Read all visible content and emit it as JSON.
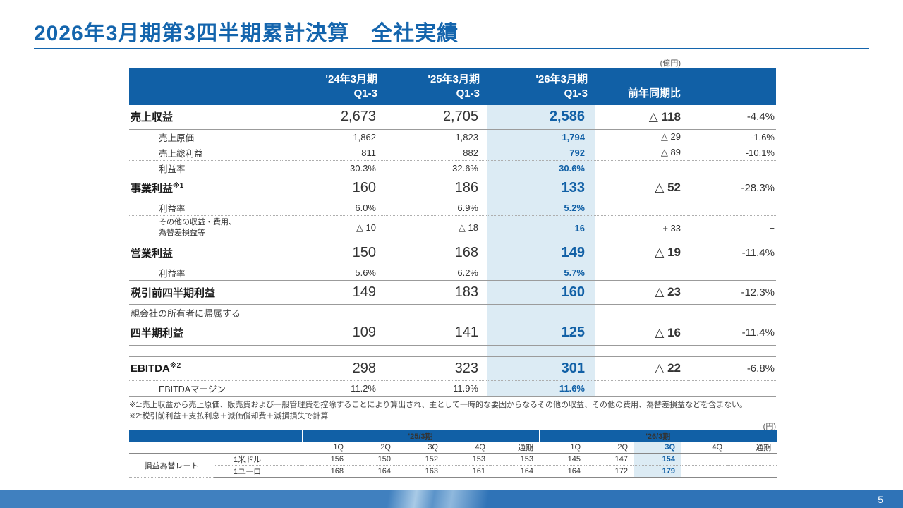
{
  "page": {
    "title": "2026年3月期第3四半期累計決算　全社実績",
    "unit_main": "(億円)",
    "unit_fx": "(円)",
    "page_number": "5"
  },
  "colors": {
    "accent_blue": "#1160a6",
    "title_blue": "#1465ad",
    "highlight_bg": "#dcebf4"
  },
  "footnotes": {
    "note1": "※1:売上収益から売上原価、販売費および一般管理費を控除することにより算出され、主として一時的な要因からなるその他の収益、その他の費用、為替差損益などを含まない。",
    "note2": "※2:税引前利益＋支払利息＋減価償却費＋減損損失で計算"
  },
  "main_table": {
    "col_headers": [
      {
        "line1": "'24年3月期",
        "line2": "Q1-3"
      },
      {
        "line1": "'25年3月期",
        "line2": "Q1-3"
      },
      {
        "line1": "'26年3月期",
        "line2": "Q1-3"
      },
      {
        "line1": "前年同期比",
        "line2": ""
      },
      {
        "line1": "",
        "line2": ""
      }
    ],
    "rows": [
      {
        "style": "major",
        "border": "solid",
        "label": "売上収益",
        "sup": "",
        "v1": "2,673",
        "v2": "2,705",
        "v3": "2,586",
        "yoy": "△ 118",
        "pct": "-4.4%"
      },
      {
        "style": "sub",
        "border": "dotted",
        "label": "売上原価",
        "sup": "",
        "v1": "1,862",
        "v2": "1,823",
        "v3": "1,794",
        "yoy": "△ 29",
        "pct": "-1.6%"
      },
      {
        "style": "sub",
        "border": "dotted",
        "label": "売上総利益",
        "sup": "",
        "v1": "811",
        "v2": "882",
        "v3": "792",
        "yoy": "△ 89",
        "pct": "-10.1%"
      },
      {
        "style": "sub",
        "border": "solid",
        "label": "利益率",
        "sup": "",
        "v1": "30.3%",
        "v2": "32.6%",
        "v3": "30.6%",
        "yoy": "",
        "pct": ""
      },
      {
        "style": "major",
        "border": "dotted",
        "label": "事業利益",
        "sup": "※1",
        "v1": "160",
        "v2": "186",
        "v3": "133",
        "yoy": "△ 52",
        "pct": "-28.3%"
      },
      {
        "style": "sub",
        "border": "dotted",
        "label": "利益率",
        "sup": "",
        "v1": "6.0%",
        "v2": "6.9%",
        "v3": "5.2%",
        "yoy": "",
        "pct": ""
      },
      {
        "style": "sub2",
        "border": "solid",
        "label": "その他の収益・費用、\n為替差損益等",
        "sup": "",
        "v1": "△ 10",
        "v2": "△ 18",
        "v3": "16",
        "yoy": "+ 33",
        "pct": "−"
      },
      {
        "style": "major",
        "border": "dotted",
        "label": "営業利益",
        "sup": "",
        "v1": "150",
        "v2": "168",
        "v3": "149",
        "yoy": "△ 19",
        "pct": "-11.4%"
      },
      {
        "style": "sub",
        "border": "solid",
        "label": "利益率",
        "sup": "",
        "v1": "5.6%",
        "v2": "6.2%",
        "v3": "5.7%",
        "yoy": "",
        "pct": ""
      },
      {
        "style": "major",
        "border": "solid",
        "label": "税引前四半期利益",
        "sup": "",
        "v1": "149",
        "v2": "183",
        "v3": "160",
        "yoy": "△ 23",
        "pct": "-12.3%"
      },
      {
        "style": "note",
        "border": "none",
        "label": "親会社の所有者に帰属する",
        "sup": "",
        "v1": "",
        "v2": "",
        "v3": "",
        "yoy": "",
        "pct": ""
      },
      {
        "style": "major",
        "border": "solid",
        "label": "四半期利益",
        "sup": "",
        "v1": "109",
        "v2": "141",
        "v3": "125",
        "yoy": "△ 16",
        "pct": "-11.4%"
      },
      {
        "style": "spacer",
        "border": "solid",
        "label": "",
        "sup": "",
        "v1": "",
        "v2": "",
        "v3": "",
        "yoy": "",
        "pct": ""
      },
      {
        "style": "major",
        "border": "dotted",
        "label": "EBITDA",
        "sup": "※2",
        "v1": "298",
        "v2": "323",
        "v3": "301",
        "yoy": "△ 22",
        "pct": "-6.8%"
      },
      {
        "style": "sub",
        "border": "solid",
        "label": "EBITDAマージン",
        "sup": "",
        "v1": "11.2%",
        "v2": "11.9%",
        "v3": "11.6%",
        "yoy": "",
        "pct": ""
      }
    ]
  },
  "fx_table": {
    "group_headers": [
      "'25/3期",
      "'26/3期"
    ],
    "quarter_headers": [
      "1Q",
      "2Q",
      "3Q",
      "4Q",
      "通期",
      "1Q",
      "2Q",
      "3Q",
      "4Q",
      "通期"
    ],
    "row_group_label": "損益為替レート",
    "highlight_index": 7,
    "rows": [
      {
        "label": "1米ドル",
        "values": [
          "156",
          "150",
          "152",
          "153",
          "153",
          "145",
          "147",
          "154",
          "",
          ""
        ]
      },
      {
        "label": "1ユーロ",
        "values": [
          "168",
          "164",
          "163",
          "161",
          "164",
          "164",
          "172",
          "179",
          "",
          ""
        ]
      }
    ]
  }
}
